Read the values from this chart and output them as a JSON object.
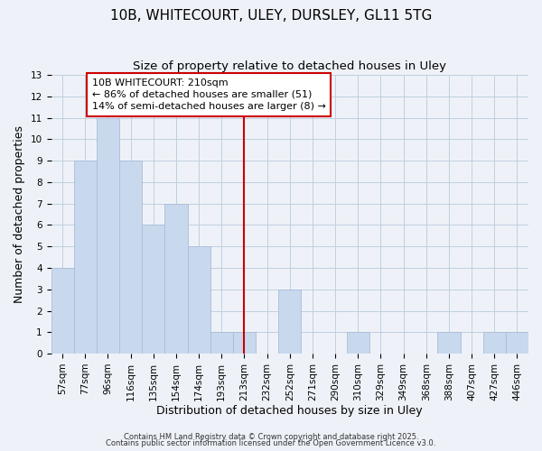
{
  "title": "10B, WHITECOURT, ULEY, DURSLEY, GL11 5TG",
  "subtitle": "Size of property relative to detached houses in Uley",
  "xlabel": "Distribution of detached houses by size in Uley",
  "ylabel": "Number of detached properties",
  "categories": [
    "57sqm",
    "77sqm",
    "96sqm",
    "116sqm",
    "135sqm",
    "154sqm",
    "174sqm",
    "193sqm",
    "213sqm",
    "232sqm",
    "252sqm",
    "271sqm",
    "290sqm",
    "310sqm",
    "329sqm",
    "349sqm",
    "368sqm",
    "388sqm",
    "407sqm",
    "427sqm",
    "446sqm"
  ],
  "values": [
    4,
    9,
    11,
    9,
    6,
    7,
    5,
    1,
    1,
    0,
    3,
    0,
    0,
    1,
    0,
    0,
    0,
    1,
    0,
    1,
    1
  ],
  "bar_color": "#c8d9ee",
  "bar_edgecolor": "#aabcda",
  "grid_color": "#c0cedf",
  "background_color": "#eef2f8",
  "vline_index": 8,
  "vline_color": "#cc0000",
  "ylim": [
    0,
    13
  ],
  "yticks": [
    0,
    1,
    2,
    3,
    4,
    5,
    6,
    7,
    8,
    9,
    10,
    11,
    12,
    13
  ],
  "annotation_title": "10B WHITECOURT: 210sqm",
  "annotation_line1": "← 86% of detached houses are smaller (51)",
  "annotation_line2": "14% of semi-detached houses are larger (8) →",
  "footer1": "Contains HM Land Registry data © Crown copyright and database right 2025.",
  "footer2": "Contains public sector information licensed under the Open Government Licence v3.0.",
  "title_fontsize": 11,
  "subtitle_fontsize": 9.5,
  "axis_label_fontsize": 9,
  "tick_fontsize": 7.5,
  "annotation_fontsize": 8,
  "footer_fontsize": 6
}
